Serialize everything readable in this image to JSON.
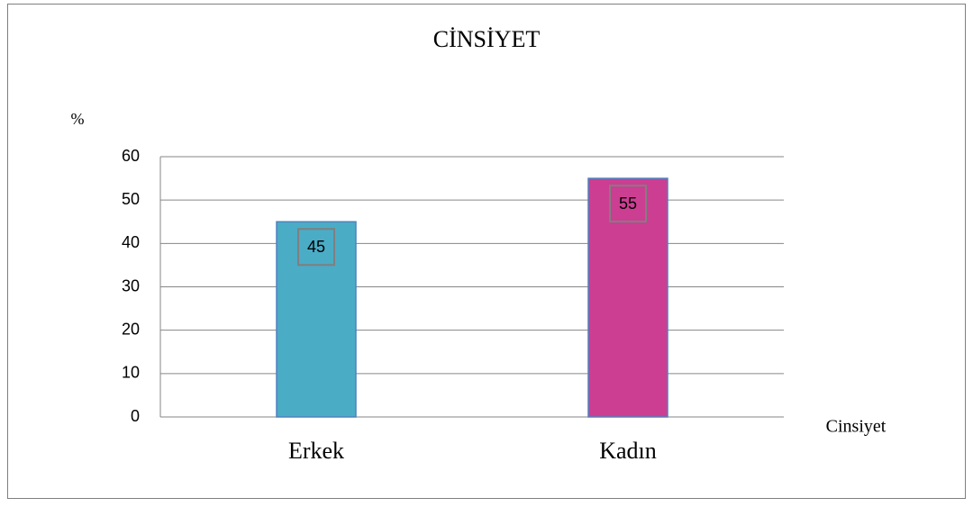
{
  "chart_data": {
    "type": "bar",
    "title": "CİNSİYET",
    "y_label": "%",
    "x_label": "Cinsiyet",
    "categories": [
      "Erkek",
      "Kadın"
    ],
    "values": [
      45,
      55
    ],
    "colors": [
      "#4bacc6",
      "#cc3e92"
    ],
    "ylim": [
      0,
      60
    ],
    "yticks": [
      0,
      10,
      20,
      30,
      40,
      50,
      60
    ],
    "grid": true,
    "data_labels": true
  }
}
